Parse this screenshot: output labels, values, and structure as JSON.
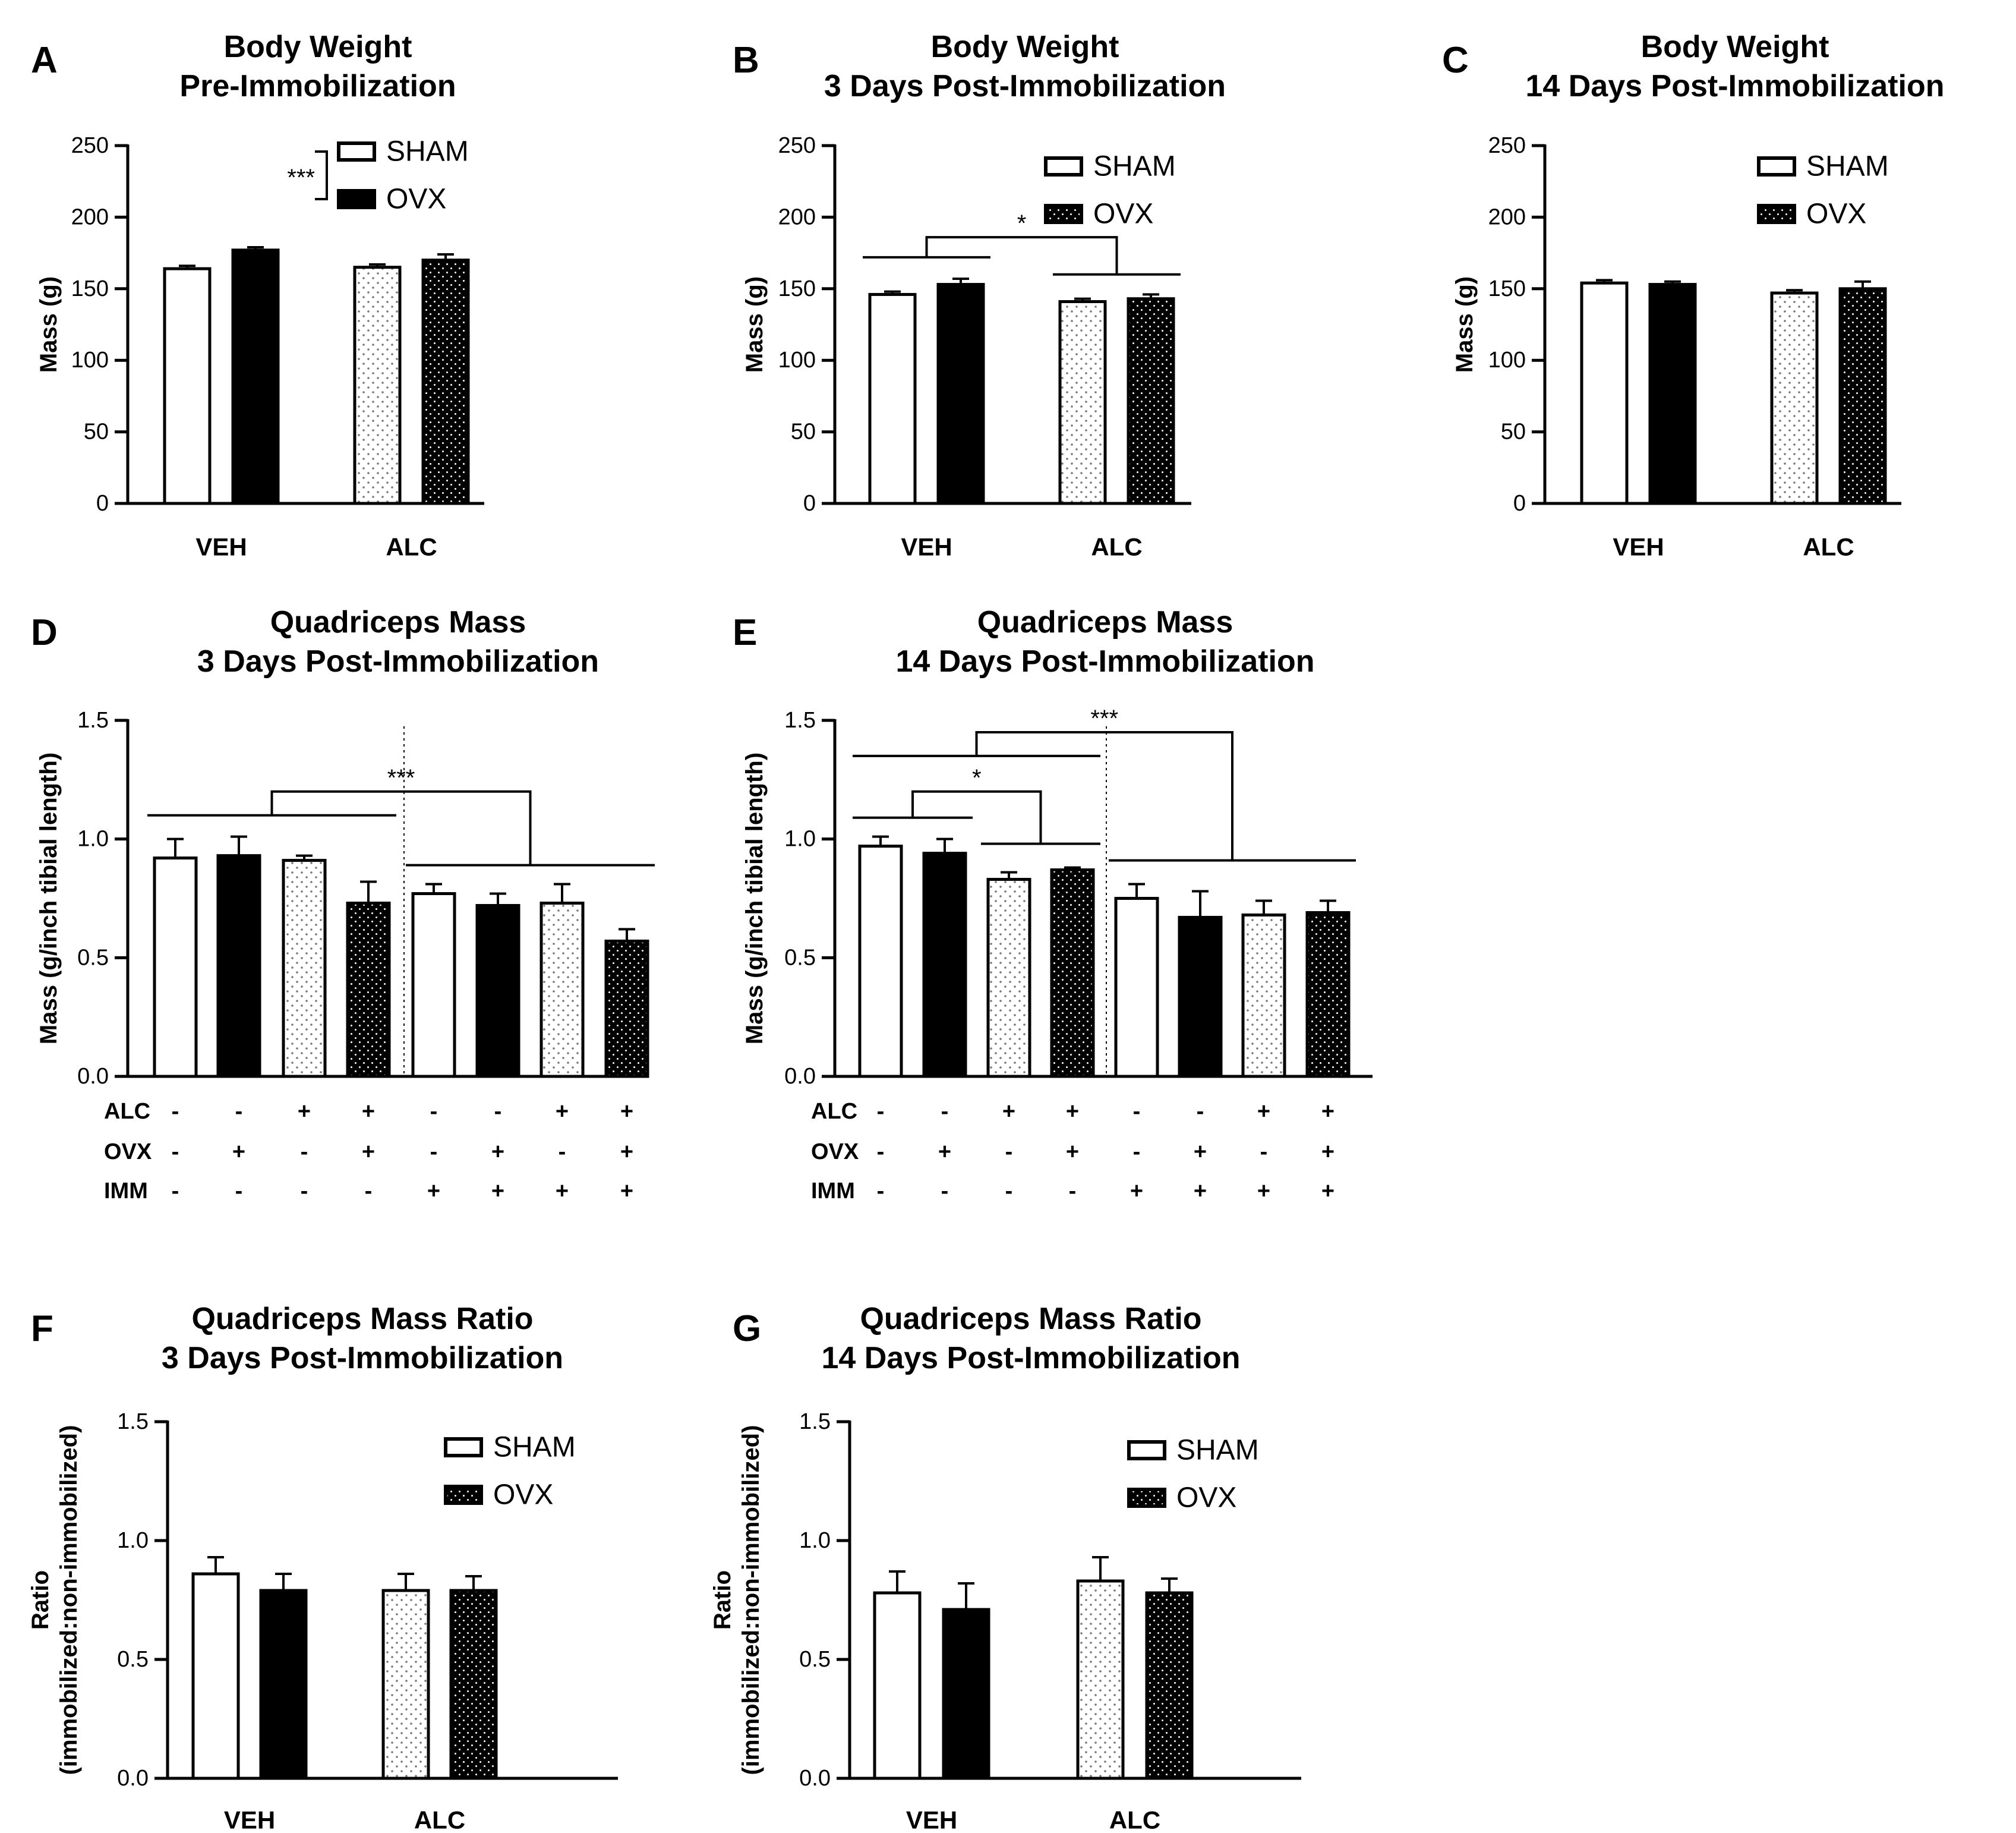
{
  "colors": {
    "ink": "#000000",
    "background": "#ffffff",
    "sham_fill": "#ffffff",
    "ovx_fill": "#000000",
    "dotted_fill": "#f2f2f2"
  },
  "chart_data": [
    {
      "id": "A",
      "panel": "A",
      "type": "bar",
      "title": [
        "Body Weight",
        "Pre-Immobilization"
      ],
      "ylabel": [
        "Mass (g)"
      ],
      "ylim": [
        0,
        250
      ],
      "yticks": [
        "0",
        "50",
        "100",
        "150",
        "200",
        "250"
      ],
      "categories": [
        "VEH",
        "ALC"
      ],
      "series": [
        {
          "name": "SHAM",
          "values": [
            164,
            165
          ],
          "errors": [
            2,
            2
          ]
        },
        {
          "name": "OVX",
          "values": [
            177,
            170
          ],
          "errors": [
            2,
            4
          ]
        }
      ],
      "legend": {
        "placement": "top-right",
        "entries": [
          "SHAM",
          "OVX"
        ],
        "annotation": "***"
      },
      "significance": []
    },
    {
      "id": "B",
      "panel": "B",
      "type": "bar",
      "title": [
        "Body Weight",
        "3 Days Post-Immobilization"
      ],
      "ylabel": [
        "Mass (g)"
      ],
      "ylim": [
        0,
        250
      ],
      "yticks": [
        "0",
        "50",
        "100",
        "150",
        "200",
        "250"
      ],
      "categories": [
        "VEH",
        "ALC"
      ],
      "series": [
        {
          "name": "SHAM",
          "values": [
            146,
            141
          ],
          "errors": [
            2,
            2
          ]
        },
        {
          "name": "OVX",
          "values": [
            153,
            143
          ],
          "errors": [
            4,
            3
          ]
        }
      ],
      "legend": {
        "placement": "top-right",
        "entries": [
          "SHAM",
          "OVX"
        ],
        "annotation": ""
      },
      "significance": [
        {
          "label": "*",
          "left": [
            0,
            1
          ],
          "right": [
            2,
            3
          ],
          "level_left": 172,
          "level_right": 160,
          "top": 186
        }
      ]
    },
    {
      "id": "C",
      "panel": "C",
      "type": "bar",
      "title": [
        "Body Weight",
        "14 Days Post-Immobilization"
      ],
      "ylabel": [
        "Mass (g)"
      ],
      "ylim": [
        0,
        250
      ],
      "yticks": [
        "0",
        "50",
        "100",
        "150",
        "200",
        "250"
      ],
      "categories": [
        "VEH",
        "ALC"
      ],
      "series": [
        {
          "name": "SHAM",
          "values": [
            154,
            147
          ],
          "errors": [
            2,
            2
          ]
        },
        {
          "name": "OVX",
          "values": [
            153,
            150
          ],
          "errors": [
            2,
            5
          ]
        }
      ],
      "legend": {
        "placement": "top-right",
        "entries": [
          "SHAM",
          "OVX"
        ],
        "annotation": ""
      },
      "significance": []
    },
    {
      "id": "D",
      "panel": "D",
      "type": "bar",
      "title": [
        "Quadriceps Mass",
        "3 Days Post-Immobilization"
      ],
      "ylabel": [
        "Mass (g/inch tibial length)"
      ],
      "ylim": [
        0,
        1.5
      ],
      "yticks": [
        "0.0",
        "0.5",
        "1.0",
        "1.5"
      ],
      "values": [
        0.92,
        0.93,
        0.91,
        0.73,
        0.77,
        0.72,
        0.73,
        0.57
      ],
      "errors": [
        0.08,
        0.08,
        0.02,
        0.09,
        0.04,
        0.05,
        0.08,
        0.05
      ],
      "conditions": [
        {
          "name": "ALC",
          "signs": [
            "-",
            "-",
            "+",
            "+",
            "-",
            "-",
            "+",
            "+"
          ]
        },
        {
          "name": "OVX",
          "signs": [
            "-",
            "+",
            "-",
            "+",
            "-",
            "+",
            "-",
            "+"
          ]
        },
        {
          "name": "IMM",
          "signs": [
            "-",
            "-",
            "-",
            "-",
            "+",
            "+",
            "+",
            "+"
          ]
        }
      ],
      "significance": [
        {
          "label": "***",
          "left": [
            0,
            3
          ],
          "right": [
            4,
            7
          ],
          "level_left": 1.1,
          "level_right": 0.89,
          "top": 1.2
        }
      ]
    },
    {
      "id": "E",
      "panel": "E",
      "type": "bar",
      "title": [
        "Quadriceps Mass",
        "14 Days Post-Immobilization"
      ],
      "ylabel": [
        "Mass (g/inch tibial length)"
      ],
      "ylim": [
        0,
        1.5
      ],
      "yticks": [
        "0.0",
        "0.5",
        "1.0",
        "1.5"
      ],
      "values": [
        0.97,
        0.94,
        0.83,
        0.87,
        0.75,
        0.67,
        0.68,
        0.69
      ],
      "errors": [
        0.04,
        0.06,
        0.03,
        0.01,
        0.06,
        0.11,
        0.06,
        0.05
      ],
      "conditions": [
        {
          "name": "ALC",
          "signs": [
            "-",
            "-",
            "+",
            "+",
            "-",
            "-",
            "+",
            "+"
          ]
        },
        {
          "name": "OVX",
          "signs": [
            "-",
            "+",
            "-",
            "+",
            "-",
            "+",
            "-",
            "+"
          ]
        },
        {
          "name": "IMM",
          "signs": [
            "-",
            "-",
            "-",
            "-",
            "+",
            "+",
            "+",
            "+"
          ]
        }
      ],
      "significance": [
        {
          "label": "*",
          "left": [
            0,
            1
          ],
          "right": [
            2,
            3
          ],
          "level_left": 1.09,
          "level_right": 0.98,
          "top": 1.2
        },
        {
          "label": "***",
          "left": [
            0,
            3
          ],
          "right": [
            4,
            7
          ],
          "level_left": 1.35,
          "level_right": 0.91,
          "top": 1.45
        }
      ]
    },
    {
      "id": "F",
      "panel": "F",
      "type": "bar",
      "title": [
        "Quadriceps Mass Ratio",
        "3 Days Post-Immobilization"
      ],
      "ylabel": [
        "Ratio",
        "(immobilized:non-immobilized)"
      ],
      "ylim": [
        0,
        1.5
      ],
      "yticks": [
        "0.0",
        "0.5",
        "1.0",
        "1.5"
      ],
      "categories": [
        "VEH",
        "ALC"
      ],
      "series": [
        {
          "name": "SHAM",
          "values": [
            0.86,
            0.79
          ],
          "errors": [
            0.07,
            0.07
          ]
        },
        {
          "name": "OVX",
          "values": [
            0.79,
            0.79
          ],
          "errors": [
            0.07,
            0.06
          ]
        }
      ],
      "legend": {
        "placement": "top-right",
        "entries": [
          "SHAM",
          "OVX"
        ],
        "annotation": ""
      },
      "significance": []
    },
    {
      "id": "G",
      "panel": "G",
      "type": "bar",
      "title": [
        "Quadriceps Mass Ratio",
        "14 Days Post-Immobilization"
      ],
      "ylabel": [
        "Ratio",
        "(immobilized:non-immobilized)"
      ],
      "ylim": [
        0,
        1.5
      ],
      "yticks": [
        "0.0",
        "0.5",
        "1.0",
        "1.5"
      ],
      "categories": [
        "VEH",
        "ALC"
      ],
      "series": [
        {
          "name": "SHAM",
          "values": [
            0.78,
            0.83
          ],
          "errors": [
            0.09,
            0.1
          ]
        },
        {
          "name": "OVX",
          "values": [
            0.71,
            0.78
          ],
          "errors": [
            0.11,
            0.06
          ]
        }
      ],
      "legend": {
        "placement": "top-right",
        "entries": [
          "SHAM",
          "OVX"
        ],
        "annotation": ""
      },
      "significance": []
    }
  ]
}
